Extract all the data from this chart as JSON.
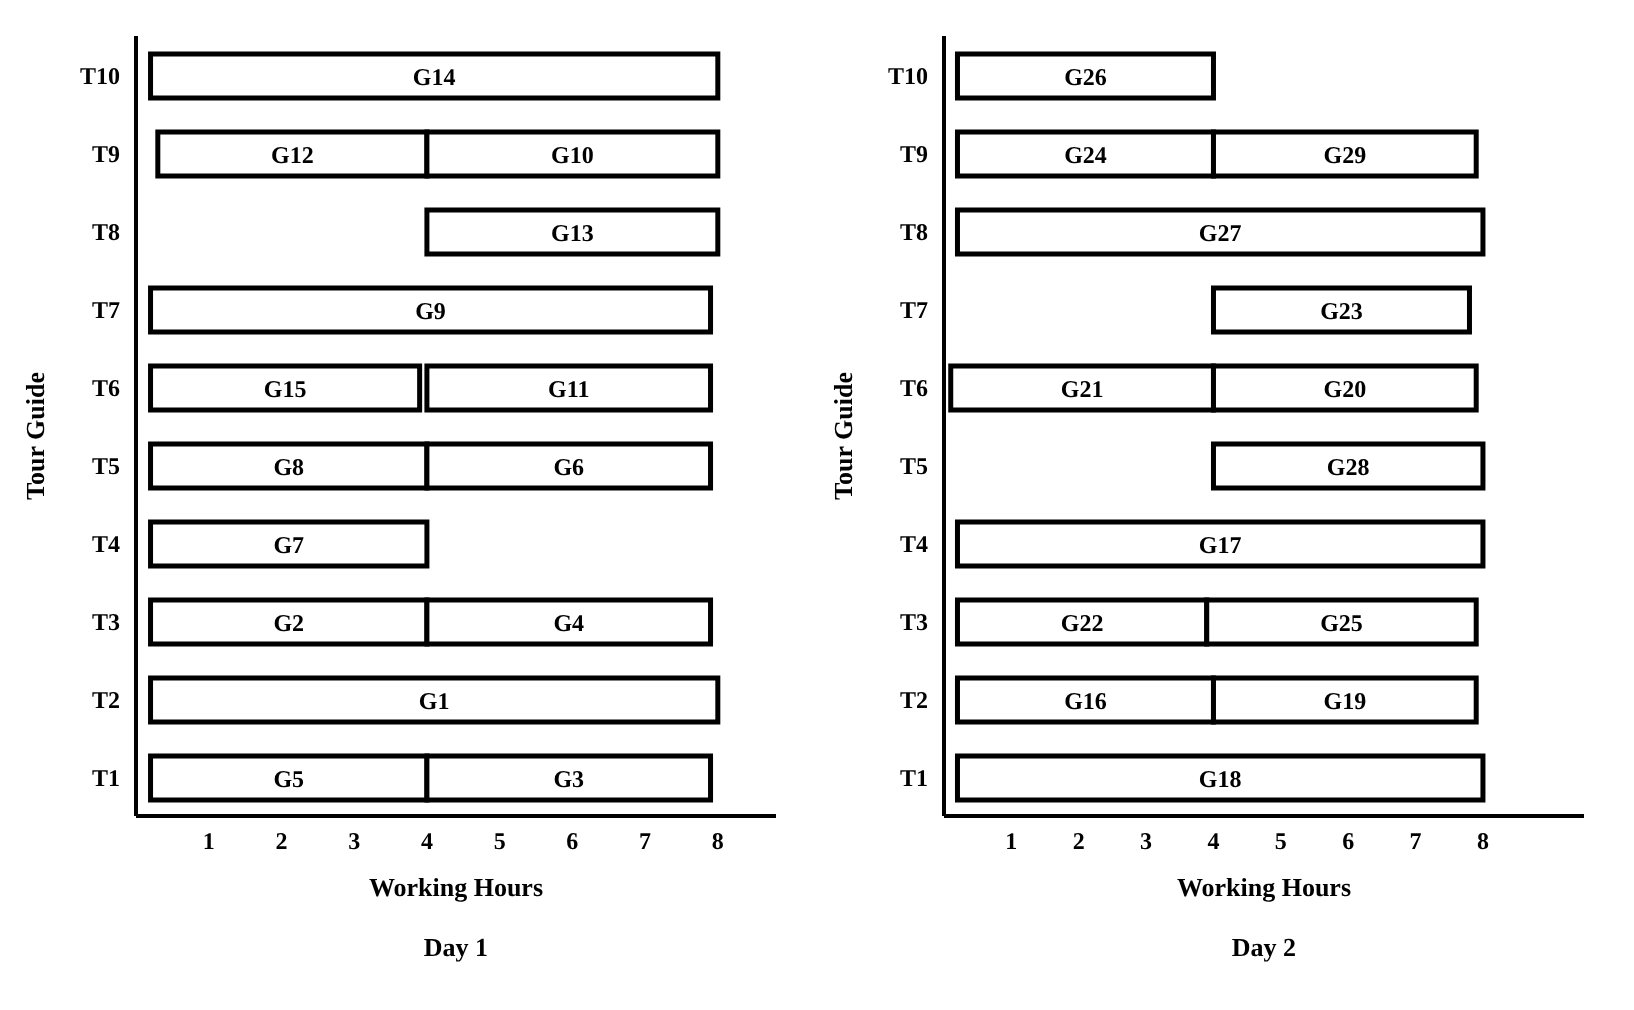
{
  "chart_data": [
    {
      "type": "bar",
      "orientation": "horizontal",
      "title": "Day 1",
      "xlabel": "Working Hours",
      "ylabel": "Tour Guide",
      "categories": [
        "T10",
        "T9",
        "T8",
        "T7",
        "T6",
        "T5",
        "T4",
        "T3",
        "T2",
        "T1"
      ],
      "xlim": [
        0,
        8.8
      ],
      "xticks": [
        1,
        2,
        3,
        4,
        5,
        6,
        7,
        8
      ],
      "grid": false,
      "series": [
        {
          "color": "#ffffff",
          "base": [
            0.2,
            0.3,
            null,
            0.2,
            0.2,
            0.2,
            0.2,
            0.2,
            0.2,
            0.2
          ],
          "values": [
            7.8,
            3.7,
            null,
            7.7,
            3.7,
            3.8,
            3.8,
            3.8,
            7.8,
            3.8
          ],
          "value_labels": [
            "G14",
            "G12",
            null,
            "G9",
            "G15",
            "G8",
            "G7",
            "G2",
            "G1",
            "G5"
          ]
        },
        {
          "color": "#ffffff",
          "base": [
            null,
            4,
            4,
            null,
            4,
            4,
            null,
            4,
            null,
            4
          ],
          "values": [
            null,
            4,
            4,
            null,
            3.9,
            3.9,
            null,
            3.9,
            null,
            3.9
          ],
          "value_labels": [
            null,
            "G10",
            "G13",
            null,
            "G11",
            "G6",
            null,
            "G4",
            null,
            "G3"
          ]
        }
      ]
    },
    {
      "type": "bar",
      "orientation": "horizontal",
      "title": "Day 2",
      "xlabel": "Working Hours",
      "ylabel": "Tour Guide",
      "categories": [
        "T10",
        "T9",
        "T8",
        "T7",
        "T6",
        "T5",
        "T4",
        "T3",
        "T2",
        "T1"
      ],
      "xlim": [
        0,
        9.5
      ],
      "xticks": [
        1,
        2,
        3,
        4,
        5,
        6,
        7,
        8
      ],
      "grid": false,
      "series": [
        {
          "color": "#ffffff",
          "base": [
            0.2,
            0.2,
            0.2,
            null,
            0.1,
            null,
            0.2,
            0.2,
            0.2,
            0.2
          ],
          "values": [
            3.8,
            3.8,
            7.8,
            null,
            3.9,
            null,
            7.8,
            3.7,
            3.8,
            7.8
          ],
          "value_labels": [
            "G26",
            "G24",
            "G27",
            null,
            "G21",
            null,
            "G17",
            "G22",
            "G16",
            "G18"
          ]
        },
        {
          "color": "#ffffff",
          "base": [
            null,
            4,
            null,
            4,
            4,
            4,
            null,
            3.9,
            4,
            null
          ],
          "values": [
            null,
            3.9,
            null,
            3.8,
            3.9,
            4,
            null,
            4,
            3.9,
            null
          ],
          "value_labels": [
            null,
            "G29",
            null,
            "G23",
            "G20",
            "G28",
            null,
            "G25",
            "G19",
            null
          ]
        }
      ]
    }
  ]
}
